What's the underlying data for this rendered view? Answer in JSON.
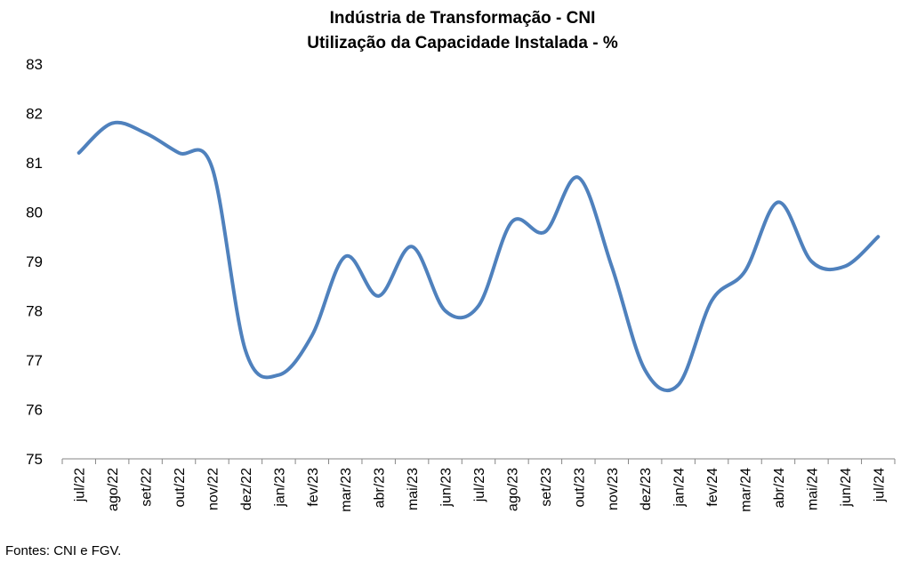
{
  "chart_data": {
    "type": "line",
    "title": "Indústria de Transformação - CNI",
    "subtitle": "Utilização da Capacidade Instalada - %",
    "xlabel": "",
    "ylabel": "",
    "ylim": [
      75,
      83
    ],
    "y_ticks": [
      "75",
      "76",
      "77",
      "78",
      "79",
      "80",
      "81",
      "82",
      "83"
    ],
    "grid": false,
    "legend": "none",
    "categories": [
      "jul/22",
      "ago/22",
      "set/22",
      "out/22",
      "nov/22",
      "dez/22",
      "jan/23",
      "fev/23",
      "mar/23",
      "abr/23",
      "mai/23",
      "jun/23",
      "jul/23",
      "ago/23",
      "set/23",
      "out/23",
      "nov/23",
      "dez/23",
      "jan/24",
      "fev/24",
      "mar/24",
      "abr/24",
      "mai/24",
      "jun/24",
      "jul/24"
    ],
    "series": [
      {
        "color": "#4f81bd",
        "values": [
          81.2,
          81.8,
          81.6,
          81.2,
          80.9,
          77.2,
          76.7,
          77.5,
          79.1,
          78.3,
          79.3,
          78.0,
          78.1,
          79.8,
          79.6,
          80.7,
          78.9,
          76.8,
          76.5,
          78.2,
          78.8,
          80.2,
          79.0,
          78.9,
          79.5
        ]
      }
    ],
    "source": "Fontes: CNI e FGV."
  }
}
